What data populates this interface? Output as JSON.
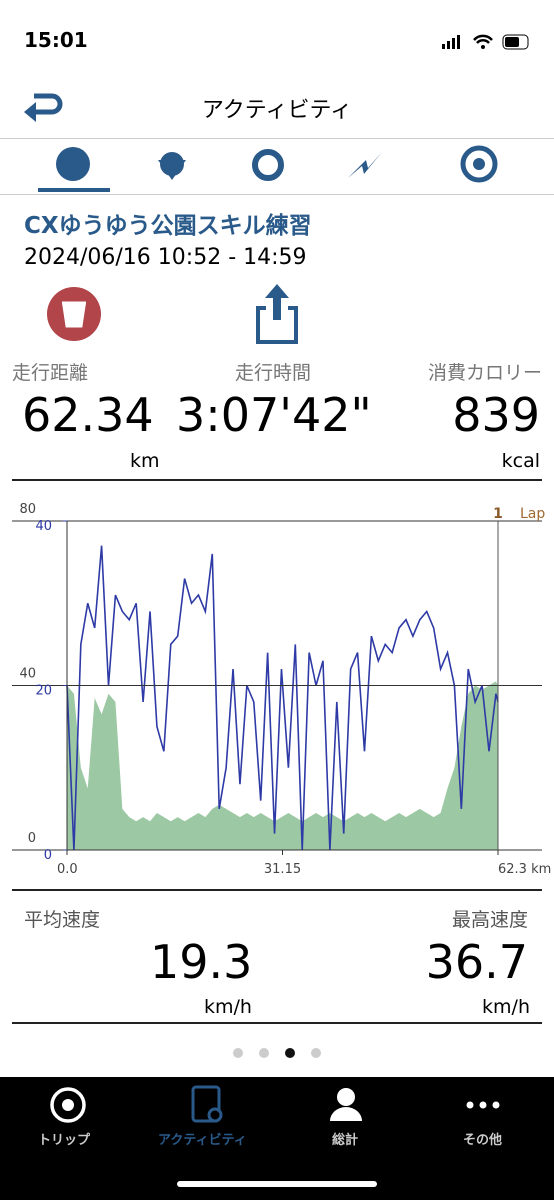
{
  "status_bar": {
    "time": "15:01"
  },
  "header": {
    "title": "アクティビティ"
  },
  "activity": {
    "name": "CXゆうゆう公園スキル練習",
    "date": "2024/06/16 10:52 - 14:59"
  },
  "summary": [
    {
      "label": "走行距離",
      "value": "62.34",
      "unit": "km"
    },
    {
      "label": "走行時間",
      "value": "3:07'42\""
    },
    {
      "label": "消費カロリー",
      "value": "839",
      "unit": "kcal"
    }
  ],
  "chart_data": {
    "type": "line",
    "x": [
      0,
      1,
      2,
      3,
      4,
      5,
      6,
      7,
      8,
      9,
      10,
      11,
      12,
      13,
      14,
      15,
      16,
      17,
      18,
      19,
      20,
      21,
      22,
      23,
      24,
      25,
      26,
      27,
      28,
      29,
      30,
      31,
      32,
      33,
      34,
      35,
      36,
      37,
      38,
      39,
      40,
      41,
      42,
      43,
      44,
      45,
      46,
      47,
      48,
      49,
      50,
      51,
      52,
      53,
      54,
      55,
      56,
      57,
      58,
      59,
      60,
      61,
      62,
      62.3
    ],
    "xlim": [
      0,
      62.3
    ],
    "xticks": [
      {
        "value": 0,
        "label": "0.0"
      },
      31.15,
      {
        "value": 62.3,
        "label": "62.3 km"
      }
    ],
    "ylim": [
      0,
      80
    ],
    "yticks": [
      0,
      40,
      80
    ],
    "y2lim": [
      0,
      40
    ],
    "y2ticks": [
      0,
      20,
      40
    ],
    "lap": {
      "number": "1",
      "label": "Lap",
      "x": 62.3
    },
    "series": [
      {
        "color": "#9cc8a3",
        "values": [
          40,
          38,
          20,
          15,
          37,
          33,
          38,
          36,
          10,
          8,
          7,
          8,
          7,
          9,
          8,
          7,
          8,
          7,
          8,
          9,
          8,
          10,
          11,
          10,
          9,
          8,
          9,
          8,
          9,
          8,
          7,
          8,
          9,
          8,
          7,
          8,
          9,
          8,
          9,
          8,
          7,
          8,
          9,
          8,
          9,
          8,
          7,
          8,
          9,
          8,
          9,
          10,
          9,
          8,
          9,
          15,
          20,
          30,
          38,
          40,
          39,
          40,
          41,
          40
        ]
      },
      {
        "color": "#2e3aa6",
        "axis": "y2",
        "values": [
          20,
          0,
          25,
          30,
          27,
          37,
          20,
          31,
          29,
          28,
          30,
          18,
          29,
          15,
          12,
          25,
          26,
          33,
          30,
          31,
          29,
          36,
          5,
          10,
          22,
          8,
          20,
          18,
          6,
          24,
          2,
          22,
          10,
          25,
          0,
          24,
          20,
          23,
          0,
          18,
          2,
          22,
          24,
          12,
          26,
          23,
          25,
          24,
          27,
          28,
          26,
          28,
          29,
          27,
          22,
          24,
          20,
          5,
          22,
          18,
          20,
          12,
          19,
          18
        ]
      }
    ]
  },
  "summary2": [
    {
      "label": "平均速度",
      "value": "19.3",
      "unit": "km/h"
    },
    {
      "label": "最高速度",
      "value": "36.7",
      "unit": "km/h"
    }
  ],
  "tabbar": [
    "トリップ",
    "アクティビティ",
    "総計",
    "その他"
  ]
}
